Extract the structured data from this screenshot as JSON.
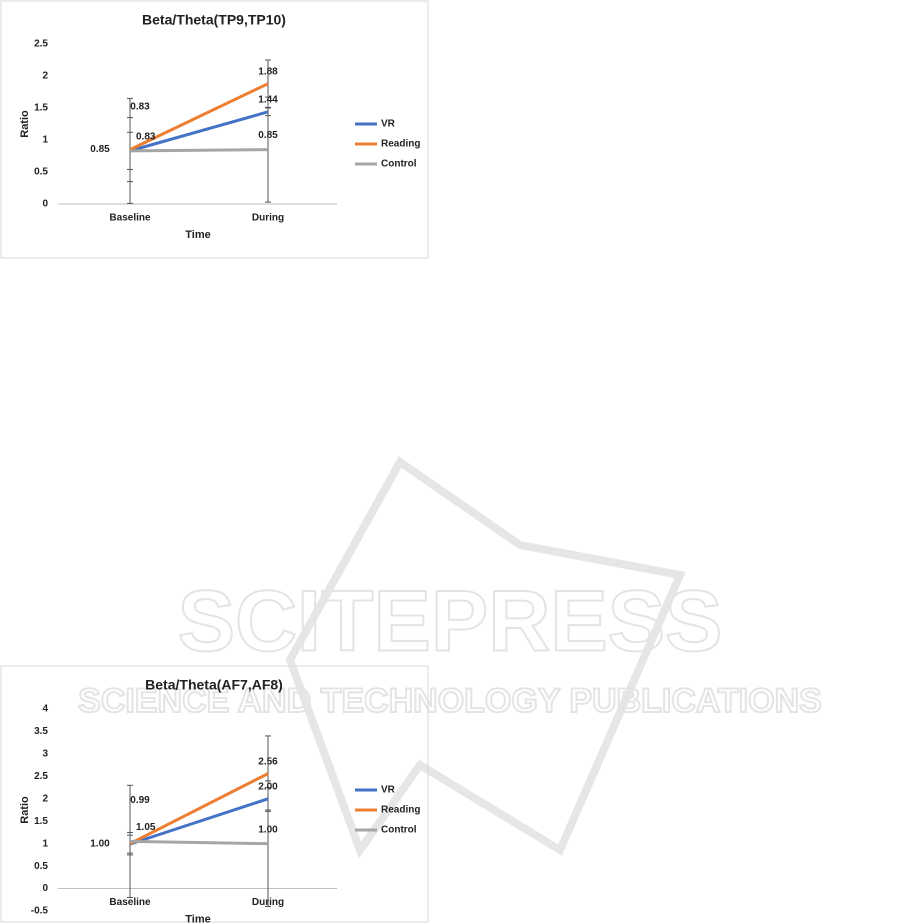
{
  "chart_data": [
    {
      "type": "line",
      "title": "Beta/Theta(TP9,TP10)",
      "x_label": "Time",
      "y_label": "Ratio",
      "categories": [
        "Baseline",
        "During"
      ],
      "series": [
        {
          "name": "VR",
          "color": "#4472c4",
          "values": [
            0.83,
            1.44
          ],
          "value_labels": [
            "0.83",
            "1.44"
          ],
          "errors": [
            0.29,
            0.06
          ]
        },
        {
          "name": "Reading",
          "color": "#ed7d31",
          "values": [
            0.85,
            1.88
          ],
          "value_labels": [
            "0.85",
            "1.88"
          ],
          "errors": [
            0.5,
            0.37
          ]
        },
        {
          "name": "Control",
          "color": "#a5a5a5",
          "values": [
            0.83,
            0.85
          ],
          "value_labels": [
            "0.83",
            "0.85"
          ],
          "errors": [
            0.82,
            0.82
          ]
        }
      ],
      "ylim": [
        0,
        2.5
      ],
      "yticks": [
        0,
        0.5,
        1,
        {
          "value": 1.5,
          "label": "1.5"
        },
        2,
        {
          "value": 2.5,
          "label": "2.5"
        }
      ],
      "legend": "right"
    },
    {
      "type": "line",
      "title": "Beta/Theta(AF7,AF8)",
      "x_label": "Time",
      "y_label": "Ratio",
      "categories": [
        "Baseline",
        "During"
      ],
      "series": [
        {
          "name": "VR",
          "color": "#4472c4",
          "values": [
            0.99,
            2
          ],
          "value_labels": [
            "0.99",
            "2.00"
          ],
          "errors": [
            0.2,
            0.25
          ]
        },
        {
          "name": "Reading",
          "color": "#ed7d31",
          "values": [
            1,
            2.56
          ],
          "value_labels": [
            "1.00",
            "2.56"
          ],
          "errors": [
            0.25,
            0.84
          ]
        },
        {
          "name": "Control",
          "color": "#a5a5a5",
          "values": [
            1.05,
            1
          ],
          "value_labels": [
            "1.05",
            "1.00"
          ],
          "errors": [
            1.25,
            1.4
          ]
        }
      ],
      "ylim": [
        -0.5,
        4
      ],
      "yticks": [
        -0.5,
        0,
        0.5,
        1,
        1.5,
        2,
        2.5,
        3,
        3.5,
        4
      ],
      "legend": "right"
    }
  ],
  "watermark": {
    "title": "SCITEPRESS",
    "subtitle": "SCIENCE AND TECHNOLOGY PUBLICATIONS"
  }
}
